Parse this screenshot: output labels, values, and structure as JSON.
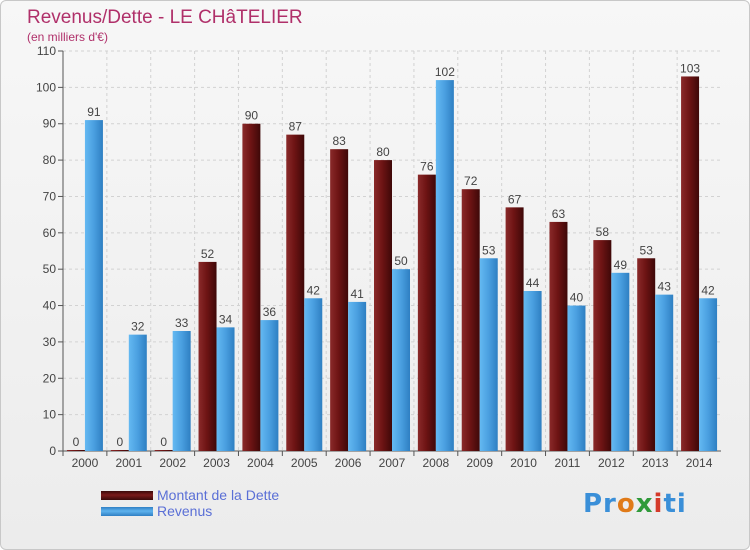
{
  "header": {
    "title": "Revenus/Dette - LE CHâTELIER",
    "subtitle": "(en milliers d'€)"
  },
  "chart_data": {
    "type": "bar",
    "categories": [
      "2000",
      "2001",
      "2002",
      "2003",
      "2004",
      "2005",
      "2006",
      "2007",
      "2008",
      "2009",
      "2010",
      "2011",
      "2012",
      "2013",
      "2014"
    ],
    "series": [
      {
        "name": "Montant de la Dette",
        "color": "#7a1a1a",
        "values": [
          0,
          0,
          0,
          52,
          90,
          87,
          83,
          80,
          76,
          72,
          67,
          63,
          58,
          53,
          103
        ]
      },
      {
        "name": "Revenus",
        "color": "#4a9fe0",
        "values": [
          91,
          32,
          33,
          34,
          36,
          42,
          41,
          50,
          102,
          53,
          44,
          40,
          49,
          43,
          42
        ]
      }
    ],
    "ylim": [
      0,
      110
    ],
    "yticks": [
      0,
      10,
      20,
      30,
      40,
      50,
      60,
      70,
      80,
      90,
      100,
      110
    ],
    "grid": true,
    "legend_position": "bottom-left"
  },
  "legend": {
    "debt_label": "Montant de la Dette",
    "revenue_label": "Revenus"
  },
  "logo": {
    "parts": [
      "Pr",
      "o",
      "x",
      "i",
      "ti"
    ],
    "colors": [
      "#3a8fd8",
      "#e07a18",
      "#2f9a3a",
      "#d43a2a",
      "#3a8fd8"
    ]
  }
}
